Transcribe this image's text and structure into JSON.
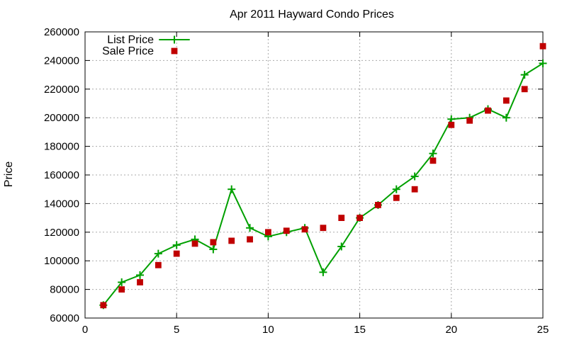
{
  "chart_data": {
    "type": "line",
    "title": "Apr 2011 Hayward Condo Prices",
    "xlabel": "",
    "ylabel": "Price",
    "xlim": [
      0,
      25
    ],
    "ylim": [
      60000,
      260000
    ],
    "x_ticks": [
      0,
      5,
      10,
      15,
      20,
      25
    ],
    "y_ticks": [
      60000,
      80000,
      100000,
      120000,
      140000,
      160000,
      180000,
      200000,
      220000,
      240000,
      260000
    ],
    "grid": true,
    "legend_position": "top-left",
    "series": [
      {
        "name": "List Price",
        "style": "line-with-plus-markers",
        "color": "#00a000",
        "points": [
          [
            1,
            69000
          ],
          [
            2,
            85000
          ],
          [
            3,
            90000
          ],
          [
            4,
            105000
          ],
          [
            5,
            111000
          ],
          [
            6,
            115000
          ],
          [
            7,
            108000
          ],
          [
            8,
            150000
          ],
          [
            9,
            123000
          ],
          [
            10,
            117000
          ],
          [
            11,
            120000
          ],
          [
            12,
            123000
          ],
          [
            13,
            92000
          ],
          [
            14,
            110000
          ],
          [
            15,
            130000
          ],
          [
            16,
            139000
          ],
          [
            17,
            150000
          ],
          [
            18,
            159000
          ],
          [
            19,
            175000
          ],
          [
            20,
            199000
          ],
          [
            21,
            200000
          ],
          [
            22,
            206000
          ],
          [
            23,
            200000
          ],
          [
            24,
            230000
          ],
          [
            25,
            238000
          ]
        ]
      },
      {
        "name": "Sale Price",
        "style": "square-markers",
        "color": "#c00000",
        "points": [
          [
            1,
            69000
          ],
          [
            2,
            80000
          ],
          [
            3,
            85000
          ],
          [
            4,
            97000
          ],
          [
            5,
            105000
          ],
          [
            6,
            112000
          ],
          [
            7,
            113000
          ],
          [
            8,
            114000
          ],
          [
            9,
            115000
          ],
          [
            10,
            120000
          ],
          [
            11,
            121000
          ],
          [
            12,
            122000
          ],
          [
            13,
            123000
          ],
          [
            14,
            130000
          ],
          [
            15,
            130000
          ],
          [
            16,
            139000
          ],
          [
            17,
            144000
          ],
          [
            18,
            150000
          ],
          [
            19,
            170000
          ],
          [
            20,
            195000
          ],
          [
            21,
            198000
          ],
          [
            22,
            205000
          ],
          [
            23,
            212000
          ],
          [
            24,
            220000
          ],
          [
            25,
            250000
          ]
        ]
      }
    ]
  }
}
